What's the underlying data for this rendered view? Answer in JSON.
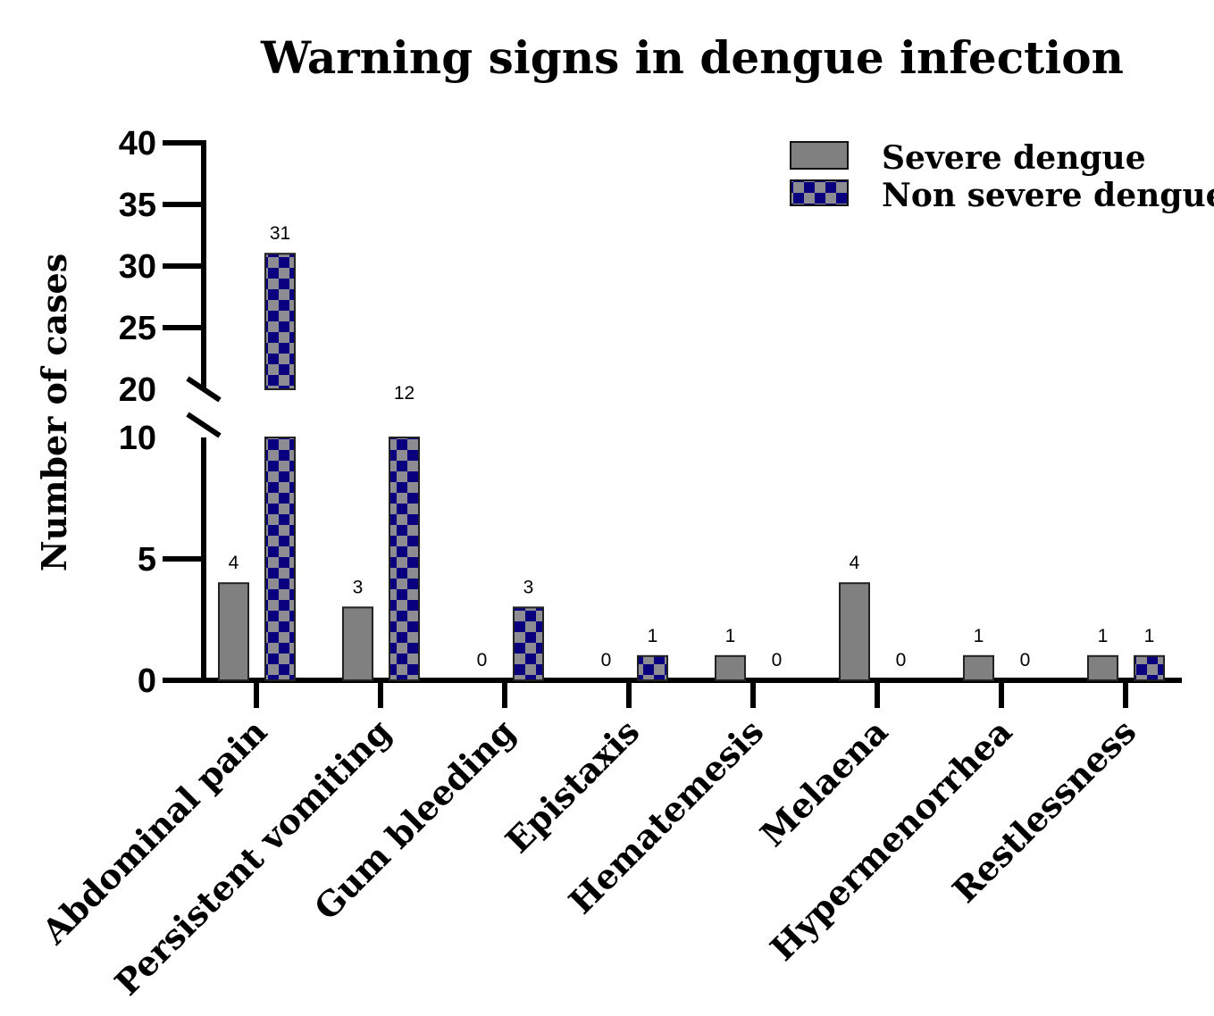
{
  "chart_data": {
    "type": "bar",
    "title": "Warning signs in dengue infection",
    "xlabel": "",
    "ylabel": "Number of cases",
    "ylim": [
      0,
      40
    ],
    "axis_break": [
      10,
      20
    ],
    "yticks_lower": [
      0,
      5,
      10
    ],
    "yticks_upper": [
      20,
      25,
      30,
      35,
      40
    ],
    "categories": [
      "Abdominal pain",
      "Persistent vomiting",
      "Gum bleeding",
      "Epistaxis",
      "Hematemesis",
      "Melaena",
      "Hypermenorrhea",
      "Restlessness"
    ],
    "series": [
      {
        "name": "Severe dengue",
        "values": [
          4,
          3,
          0,
          0,
          1,
          4,
          1,
          1
        ],
        "color": "#808080",
        "pattern": "solid"
      },
      {
        "name": "Non severe dengue",
        "values": [
          31,
          12,
          3,
          1,
          0,
          0,
          0,
          1
        ],
        "color": "#0a007f",
        "color2": "#8c8c92",
        "pattern": "checker"
      }
    ],
    "legend_position": "top-right",
    "grid": false
  }
}
